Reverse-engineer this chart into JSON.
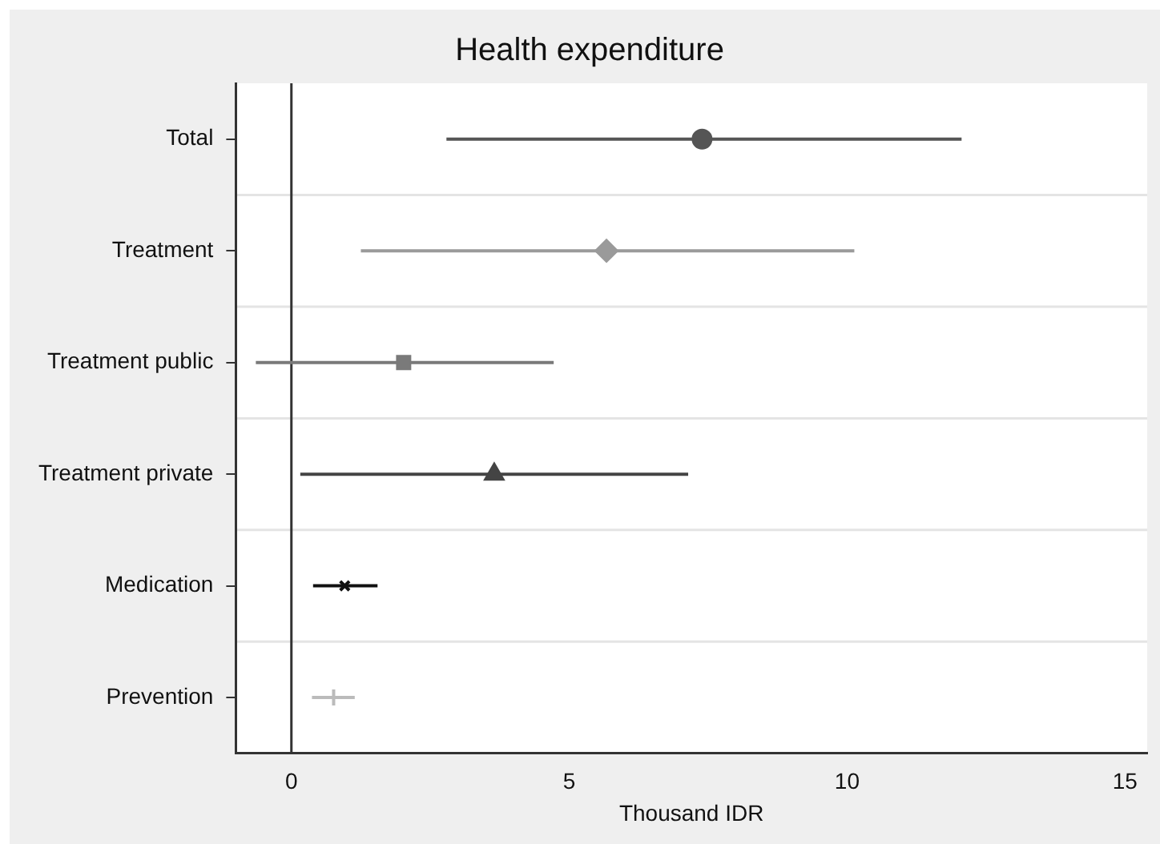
{
  "chart_data": {
    "type": "scatter",
    "orientation": "horizontal",
    "title": "Health expenditure",
    "xlabel": "Thousand IDR",
    "categories": [
      "Total",
      "Treatment",
      "Treatment public",
      "Treatment private",
      "Medication",
      "Prevention"
    ],
    "series": [
      {
        "color": "#555555",
        "marker": "circle",
        "values": [
          7.39,
          null,
          null,
          null,
          null,
          null
        ],
        "errors": [
          [
            2.79,
            12.06
          ],
          null,
          null,
          null,
          null,
          null
        ]
      },
      {
        "color": "#9a9a9a",
        "marker": "diamond",
        "values": [
          null,
          5.67,
          null,
          null,
          null,
          null
        ],
        "errors": [
          null,
          [
            1.25,
            10.13
          ],
          null,
          null,
          null,
          null
        ]
      },
      {
        "color": "#7a7a7a",
        "marker": "square",
        "values": [
          null,
          null,
          2.02,
          null,
          null,
          null
        ],
        "errors": [
          null,
          null,
          [
            -0.64,
            4.72
          ],
          null,
          null,
          null
        ]
      },
      {
        "color": "#444444",
        "marker": "triangle",
        "values": [
          null,
          null,
          null,
          3.65,
          null,
          null
        ],
        "errors": [
          null,
          null,
          null,
          [
            0.16,
            7.14
          ],
          null,
          null
        ]
      },
      {
        "color": "#111111",
        "marker": "cross",
        "values": [
          null,
          null,
          null,
          null,
          0.96,
          null
        ],
        "errors": [
          null,
          null,
          null,
          null,
          [
            0.39,
            1.55
          ],
          null
        ]
      },
      {
        "color": "#bbbbbb",
        "marker": "plus",
        "values": [
          null,
          null,
          null,
          null,
          null,
          0.76
        ],
        "errors": [
          null,
          null,
          null,
          null,
          null,
          [
            0.37,
            1.14
          ]
        ]
      }
    ],
    "xlim": [
      -1,
      15.4
    ],
    "xticks": [
      0,
      5,
      10,
      15
    ],
    "ref_lines": [
      {
        "axis": "x",
        "value": 0,
        "color": "#333333"
      }
    ],
    "grid": "y",
    "legend": false
  }
}
